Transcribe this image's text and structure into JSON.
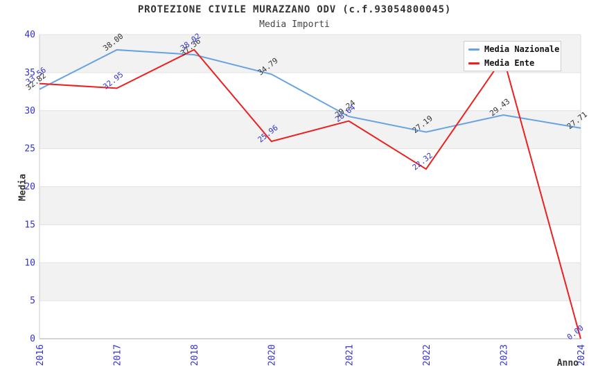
{
  "chart_data": {
    "type": "line",
    "title": "PROTEZIONE CIVILE MURAZZANO ODV (c.f.93054800045)",
    "subtitle": "Media Importi",
    "xlabel": "Anno",
    "ylabel": "Media",
    "categories": [
      "2016",
      "2017",
      "2018",
      "2020",
      "2021",
      "2022",
      "2023",
      "2024"
    ],
    "ylim": [
      0,
      40
    ],
    "yticks": [
      0,
      5,
      10,
      15,
      20,
      25,
      30,
      35,
      40
    ],
    "grid": "horizontal gridlines with alternating gray bands",
    "legend_position": "top-right",
    "series": [
      {
        "name": "Media Nazionale",
        "color": "#67A3E0",
        "label_color": "#333333",
        "values": [
          32.82,
          38.0,
          37.36,
          34.79,
          29.24,
          27.19,
          29.43,
          27.71
        ],
        "point_labels": [
          "32.82",
          "38.00",
          "37.36",
          "34.79",
          "29.24",
          "27.19",
          "29.43",
          "27.71"
        ]
      },
      {
        "name": "Media Ente",
        "color": "#EC1F1F",
        "label_color": "#3333CC",
        "values": [
          33.56,
          32.95,
          38.02,
          25.96,
          28.64,
          22.32,
          37.0,
          0.0
        ],
        "point_labels": [
          "33.56",
          "32.95",
          "38.02",
          "25.96",
          "28.64",
          "22.32",
          null,
          "0.00"
        ]
      }
    ]
  },
  "colors": {
    "band_gray": "#F2F2F2",
    "grid_line": "#E1E1E1",
    "axis_line": "#AAAAAA",
    "plot_border": "#CCCCCC",
    "tick_text": "#3333CC",
    "dark_text": "#333333",
    "background": "#FFFFFF"
  }
}
